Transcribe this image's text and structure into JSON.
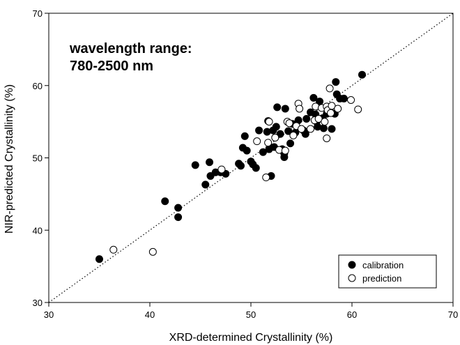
{
  "chart_data": {
    "type": "scatter",
    "title": "",
    "xlabel": "XRD-determined Crystallinity (%)",
    "ylabel": "NIR-predicted Crystallinity (%)",
    "xlim": [
      30,
      70
    ],
    "ylim": [
      30,
      70
    ],
    "xticks": [
      "30",
      "40",
      "50",
      "60",
      "70"
    ],
    "yticks": [
      "30",
      "40",
      "50",
      "60",
      "70"
    ],
    "grid": false,
    "legend_position": "bottom-right",
    "annotation": [
      "wavelength range:",
      "780-2500 nm"
    ],
    "reference_line": {
      "style": "dotted",
      "from": [
        30,
        30
      ],
      "to": [
        70,
        70
      ]
    },
    "series": [
      {
        "name": "calibration",
        "marker": "filled-circle",
        "color": "#000000",
        "points": [
          [
            35.0,
            36.0
          ],
          [
            41.5,
            44.0
          ],
          [
            42.8,
            43.1
          ],
          [
            42.8,
            41.8
          ],
          [
            44.5,
            49.0
          ],
          [
            45.5,
            46.3
          ],
          [
            45.9,
            49.4
          ],
          [
            46.0,
            47.5
          ],
          [
            46.5,
            48.0
          ],
          [
            47.0,
            48.0
          ],
          [
            47.5,
            47.8
          ],
          [
            48.8,
            49.2
          ],
          [
            49.0,
            48.9
          ],
          [
            49.2,
            51.4
          ],
          [
            49.4,
            53.0
          ],
          [
            49.6,
            51.0
          ],
          [
            50.0,
            49.5
          ],
          [
            50.2,
            49.1
          ],
          [
            50.5,
            48.6
          ],
          [
            50.8,
            53.8
          ],
          [
            51.2,
            50.8
          ],
          [
            51.6,
            53.6
          ],
          [
            51.7,
            55.1
          ],
          [
            51.8,
            51.2
          ],
          [
            52.0,
            47.5
          ],
          [
            52.2,
            53.8
          ],
          [
            52.3,
            51.5
          ],
          [
            52.5,
            54.3
          ],
          [
            52.6,
            57.0
          ],
          [
            52.9,
            53.3
          ],
          [
            53.1,
            51.2
          ],
          [
            53.3,
            50.1
          ],
          [
            53.3,
            50.6
          ],
          [
            53.4,
            56.8
          ],
          [
            53.7,
            53.7
          ],
          [
            53.9,
            52.0
          ],
          [
            54.1,
            54.7
          ],
          [
            54.4,
            53.5
          ],
          [
            54.7,
            55.2
          ],
          [
            55.2,
            53.8
          ],
          [
            55.4,
            53.3
          ],
          [
            55.5,
            55.4
          ],
          [
            55.9,
            56.3
          ],
          [
            56.2,
            58.3
          ],
          [
            56.4,
            56.0
          ],
          [
            56.5,
            55.0
          ],
          [
            56.6,
            54.3
          ],
          [
            56.8,
            57.8
          ],
          [
            57.1,
            55.5
          ],
          [
            57.2,
            54.1
          ],
          [
            57.5,
            56.1
          ],
          [
            57.8,
            56.8
          ],
          [
            58.0,
            54.0
          ],
          [
            58.3,
            56.1
          ],
          [
            58.4,
            60.5
          ],
          [
            58.5,
            58.8
          ],
          [
            58.8,
            58.2
          ],
          [
            59.2,
            58.2
          ],
          [
            61.0,
            61.5
          ]
        ]
      },
      {
        "name": "prediction",
        "marker": "open-circle",
        "color": "#000000",
        "points": [
          [
            36.4,
            37.3
          ],
          [
            40.3,
            37.0
          ],
          [
            47.1,
            48.4
          ],
          [
            50.6,
            52.3
          ],
          [
            51.5,
            47.3
          ],
          [
            51.7,
            52.1
          ],
          [
            51.8,
            55.0
          ],
          [
            52.4,
            52.8
          ],
          [
            52.8,
            51.1
          ],
          [
            53.4,
            51.0
          ],
          [
            53.6,
            55.0
          ],
          [
            53.8,
            54.8
          ],
          [
            54.2,
            53.1
          ],
          [
            54.5,
            54.4
          ],
          [
            54.7,
            57.5
          ],
          [
            54.8,
            56.8
          ],
          [
            55.0,
            54.0
          ],
          [
            55.9,
            54.0
          ],
          [
            56.3,
            55.2
          ],
          [
            56.4,
            57.1
          ],
          [
            56.7,
            55.4
          ],
          [
            57.0,
            56.9
          ],
          [
            57.3,
            55.0
          ],
          [
            57.5,
            52.7
          ],
          [
            57.5,
            57.1
          ],
          [
            57.6,
            56.6
          ],
          [
            57.8,
            59.6
          ],
          [
            57.9,
            56.2
          ],
          [
            58.0,
            57.2
          ],
          [
            58.6,
            56.8
          ],
          [
            59.9,
            58.0
          ],
          [
            60.6,
            56.7
          ]
        ]
      }
    ]
  }
}
